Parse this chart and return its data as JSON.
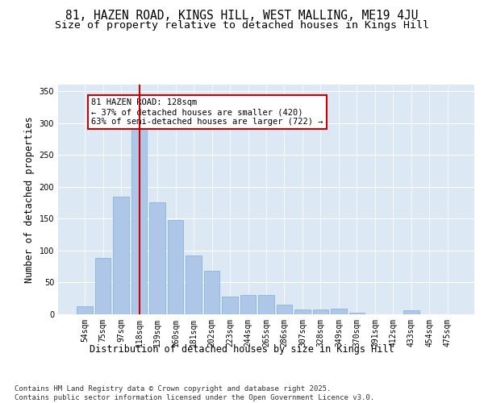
{
  "title1": "81, HAZEN ROAD, KINGS HILL, WEST MALLING, ME19 4JU",
  "title2": "Size of property relative to detached houses in Kings Hill",
  "xlabel": "Distribution of detached houses by size in Kings Hill",
  "ylabel": "Number of detached properties",
  "categories": [
    "54sqm",
    "75sqm",
    "97sqm",
    "118sqm",
    "139sqm",
    "160sqm",
    "181sqm",
    "202sqm",
    "223sqm",
    "244sqm",
    "265sqm",
    "286sqm",
    "307sqm",
    "328sqm",
    "349sqm",
    "370sqm",
    "391sqm",
    "412sqm",
    "433sqm",
    "454sqm",
    "475sqm"
  ],
  "values": [
    13,
    88,
    184,
    290,
    175,
    148,
    92,
    68,
    28,
    30,
    30,
    15,
    7,
    8,
    9,
    3,
    0,
    0,
    6,
    0,
    0
  ],
  "bar_color": "#aec6e8",
  "bar_edgecolor": "#7bafd4",
  "vline_color": "#cc0000",
  "annotation_text": "81 HAZEN ROAD: 128sqm\n← 37% of detached houses are smaller (420)\n63% of semi-detached houses are larger (722) →",
  "annotation_box_color": "#ffffff",
  "annotation_box_edgecolor": "#cc0000",
  "ylim": [
    0,
    360
  ],
  "yticks": [
    0,
    50,
    100,
    150,
    200,
    250,
    300,
    350
  ],
  "background_color": "#dde8f5",
  "footer_text": "Contains HM Land Registry data © Crown copyright and database right 2025.\nContains public sector information licensed under the Open Government Licence v3.0.",
  "title_fontsize": 10.5,
  "subtitle_fontsize": 9.5,
  "axis_label_fontsize": 8.5,
  "tick_fontsize": 7,
  "footer_fontsize": 6.5,
  "annotation_fontsize": 7.5
}
